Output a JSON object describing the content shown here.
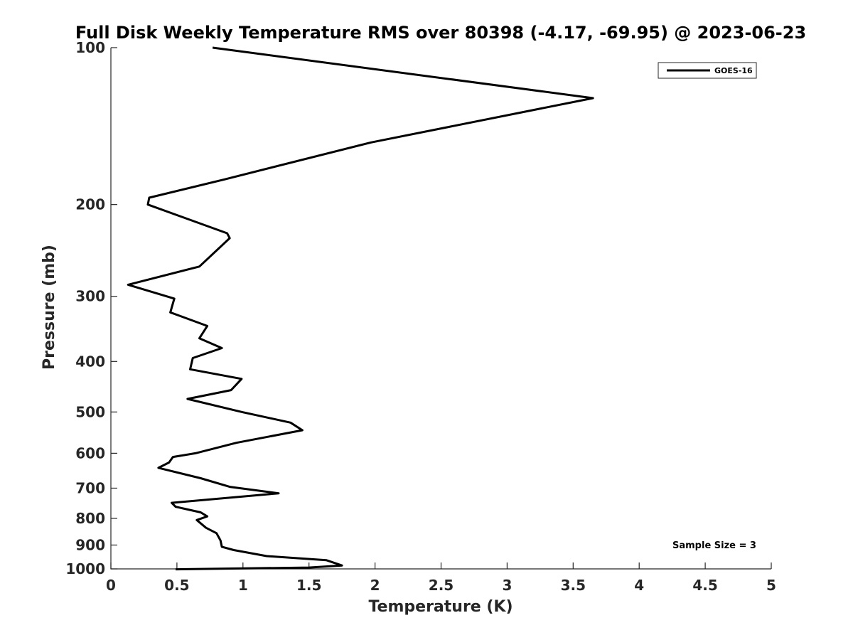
{
  "chart_data": {
    "type": "line",
    "title": "Full Disk Weekly Temperature RMS over 80398 (-4.17, -69.95) @ 2023-06-23",
    "xlabel": "Temperature (K)",
    "ylabel": "Pressure (mb)",
    "xlim": [
      0,
      5
    ],
    "ylim": [
      100,
      1000
    ],
    "y_scale": "log",
    "y_reversed": true,
    "grid": false,
    "x_ticks": [
      "0",
      "0.5",
      "1",
      "1.5",
      "2",
      "2.5",
      "3",
      "3.5",
      "4",
      "4.5",
      "5"
    ],
    "y_ticks": [
      "100",
      "200",
      "300",
      "400",
      "500",
      "600",
      "700",
      "800",
      "900",
      "1000"
    ],
    "legend": {
      "position": "top-right",
      "entries": [
        "GOES-16"
      ]
    },
    "annotation": "Sample Size = 3",
    "series": [
      {
        "name": "GOES-16",
        "color": "#000000",
        "x": [
          0.77,
          3.65,
          1.97,
          0.86,
          0.29,
          0.28,
          0.88,
          0.9,
          0.67,
          0.13,
          0.48,
          0.45,
          0.73,
          0.67,
          0.84,
          0.62,
          0.6,
          0.99,
          0.91,
          0.58,
          0.99,
          1.36,
          1.45,
          0.95,
          0.64,
          0.47,
          0.44,
          0.36,
          0.68,
          0.9,
          1.27,
          0.46,
          0.49,
          0.68,
          0.73,
          0.65,
          0.72,
          0.8,
          0.83,
          0.84,
          0.93,
          1.18,
          1.63,
          1.75,
          1.5,
          0.49
        ],
        "y": [
          100,
          125,
          152,
          179,
          194,
          200,
          227,
          232,
          263,
          285,
          303,
          322,
          342,
          361,
          377,
          394,
          414,
          432,
          454,
          472,
          500,
          524,
          542,
          573,
          600,
          610,
          625,
          640,
          670,
          696,
          716,
          747,
          760,
          779,
          793,
          806,
          834,
          854,
          882,
          907,
          920,
          945,
          962,
          985,
          994,
          1002
        ]
      }
    ]
  }
}
